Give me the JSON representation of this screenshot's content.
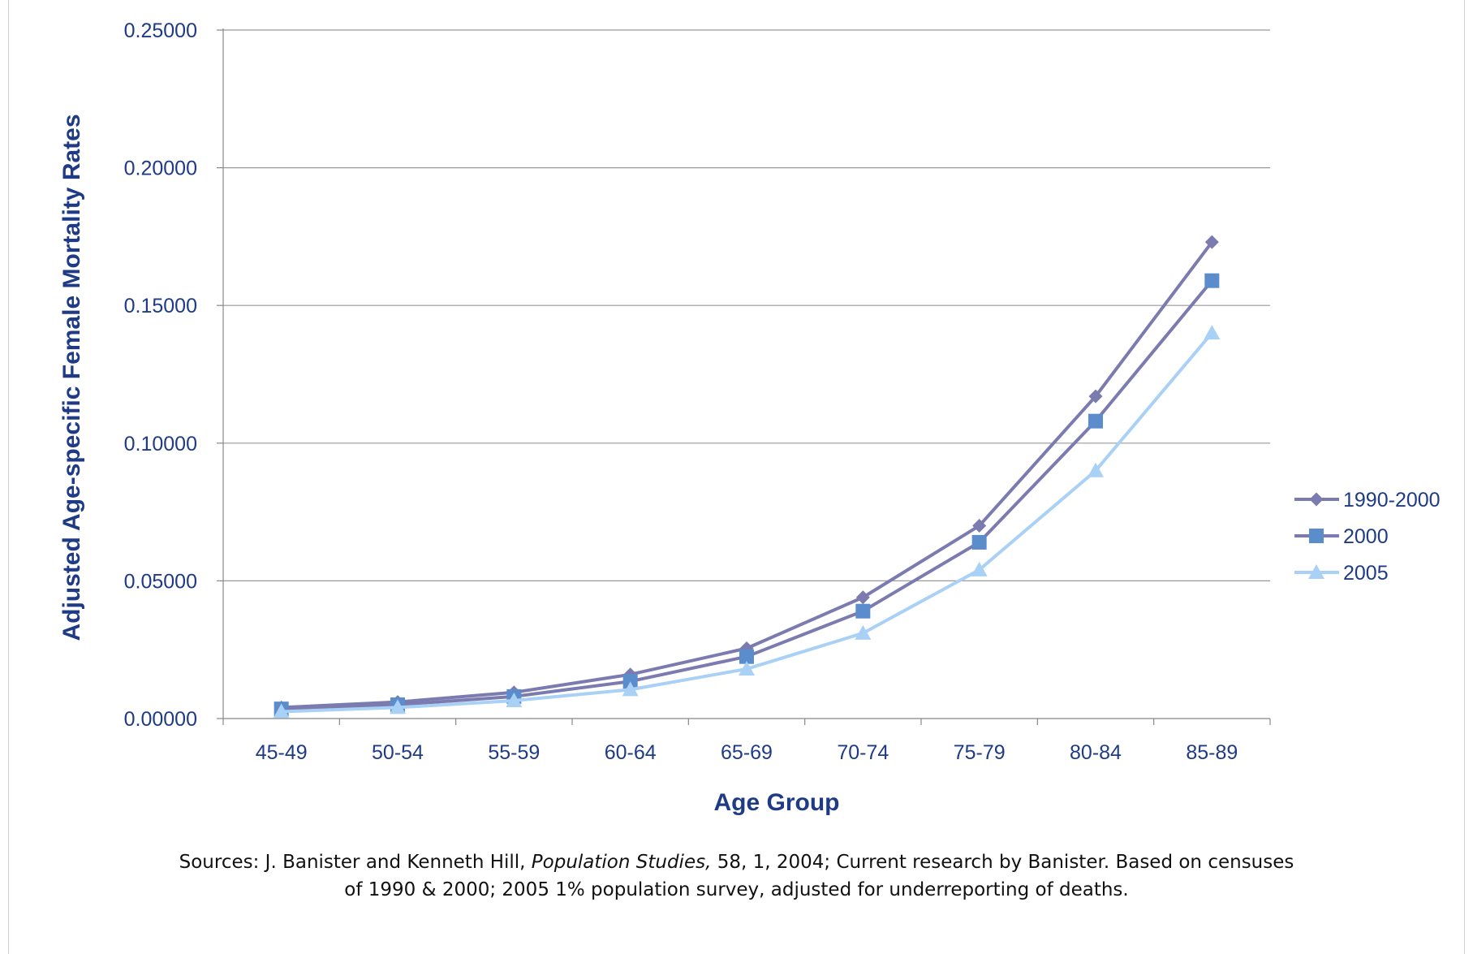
{
  "chart_data": {
    "type": "line",
    "xlabel": "Age Group",
    "ylabel": "Adjusted Age-specific Female Mortality Rates",
    "ylim": [
      0,
      0.25
    ],
    "yticks": [
      "0.00000",
      "0.05000",
      "0.10000",
      "0.15000",
      "0.20000",
      "0.25000"
    ],
    "categories": [
      "45-49",
      "50-54",
      "55-59",
      "60-64",
      "65-69",
      "70-74",
      "75-79",
      "80-84",
      "85-89"
    ],
    "grid": true,
    "legend_position": "right",
    "series": [
      {
        "name": "1990-2000",
        "marker": "diamond",
        "color": "#7b7bb0",
        "values": [
          0.004,
          0.006,
          0.0095,
          0.016,
          0.0255,
          0.044,
          0.07,
          0.117,
          0.173
        ]
      },
      {
        "name": "2000",
        "marker": "square",
        "color": "#7b7bb0",
        "marker_color": "#5b8ccc",
        "values": [
          0.0035,
          0.005,
          0.008,
          0.0135,
          0.0225,
          0.039,
          0.064,
          0.108,
          0.159
        ]
      },
      {
        "name": "2005",
        "marker": "triangle",
        "color": "#a9d0f5",
        "values": [
          0.0025,
          0.004,
          0.0065,
          0.0105,
          0.018,
          0.031,
          0.054,
          0.09,
          0.14
        ]
      }
    ]
  },
  "sources": {
    "prefix": "Sources: J. Banister and Kenneth Hill, ",
    "journal": "Population Studies,",
    "rest": " 58, 1, 2004; Current research by Banister. Based on censuses",
    "line2": "of 1990 & 2000; 2005 1% population survey, adjusted for underreporting of deaths."
  }
}
